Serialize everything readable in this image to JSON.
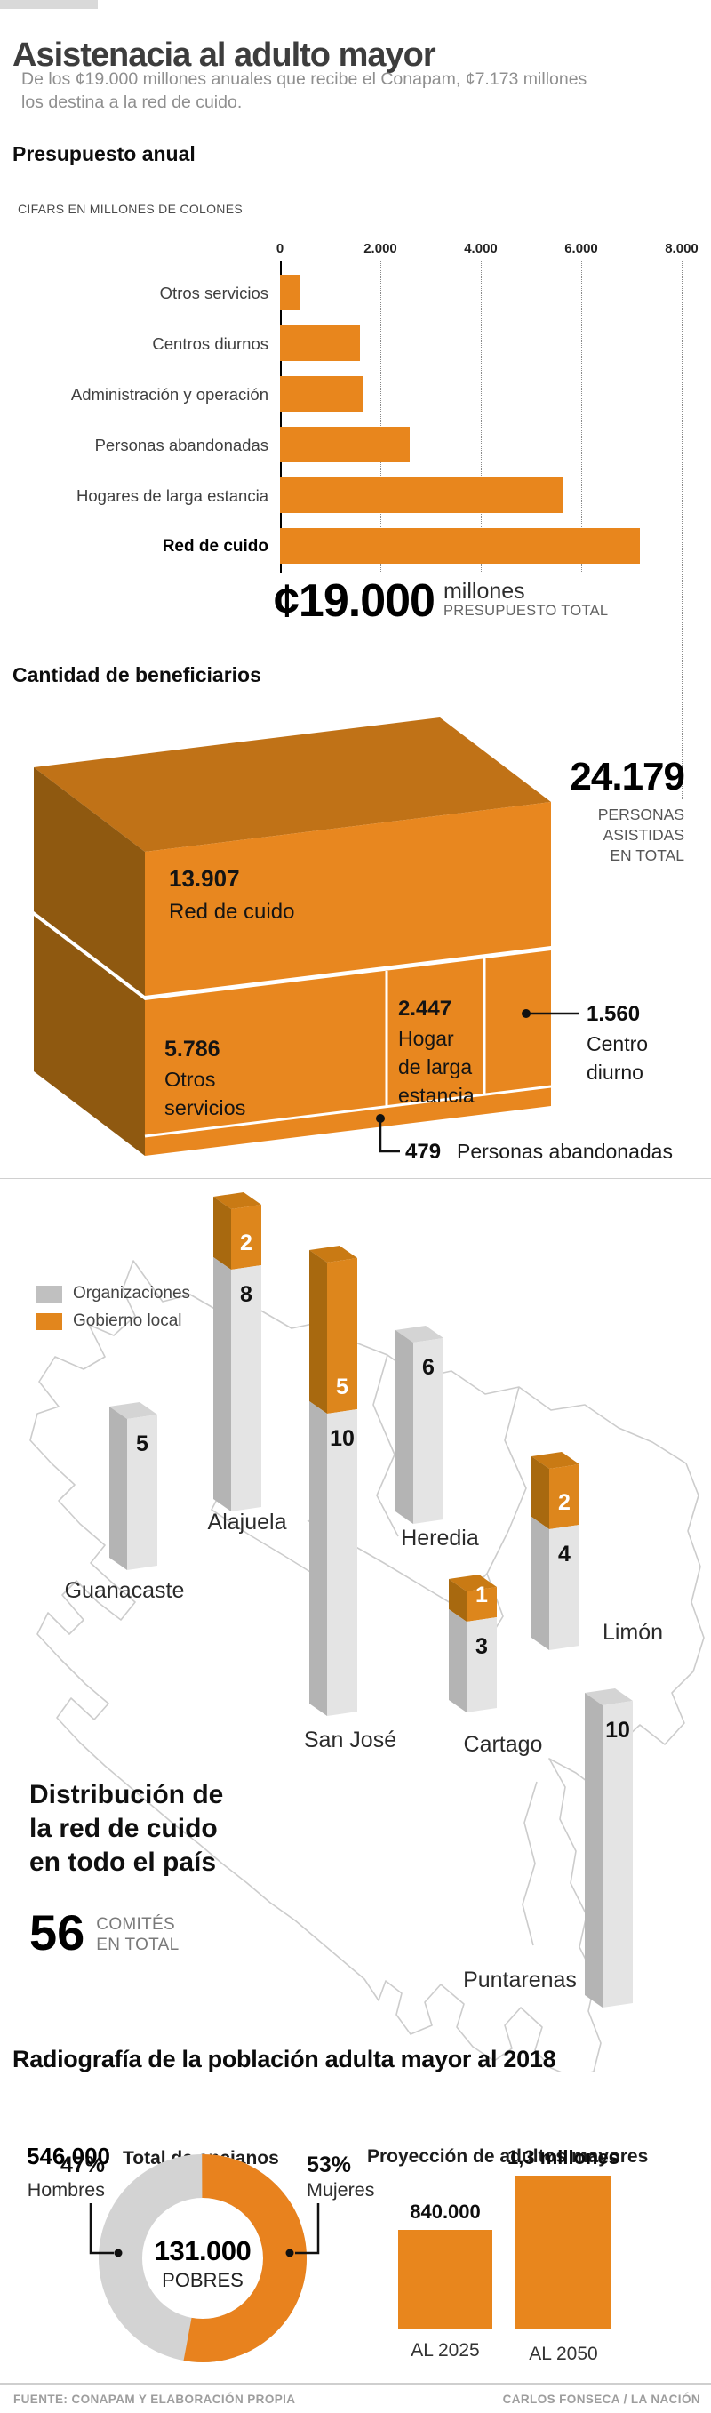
{
  "header": {
    "title": "Asistenacia al adulto mayor",
    "subtitle": "De los ¢19.000 millones anuales que recibe el Conapam, ¢7.173 millones los destina a la red de cuido."
  },
  "budget": {
    "heading": "Presupuesto anual",
    "note": "CIFARS EN MILLONES DE COLONES",
    "ticks": [
      "0",
      "2.000",
      "4.000",
      "6.000",
      "8.000"
    ],
    "total": {
      "value": "¢19.000",
      "unit": "millones",
      "caption": "PRESUPUESTO TOTAL"
    }
  },
  "beneficiaries": {
    "heading": "Cantidad de beneficiarios",
    "total": {
      "value": "24.179",
      "caption_lines": [
        "PERSONAS",
        "ASISTIDAS",
        "EN TOTAL"
      ]
    },
    "red": {
      "value": "13.907",
      "label": "Red de cuido"
    },
    "otros": {
      "value": "5.786",
      "label_lines": [
        "Otros",
        "servicios"
      ]
    },
    "hogar": {
      "value": "2.447",
      "label_lines": [
        "Hogar",
        "de larga",
        "estancia"
      ]
    },
    "centro": {
      "value": "1.560",
      "label_lines": [
        "Centro",
        "diurno"
      ]
    },
    "abandonadas": {
      "value": "479",
      "label": "Personas abandonadas"
    }
  },
  "distribution": {
    "legend": [
      {
        "label": "Organizaciones",
        "color": "#C0C0C0"
      },
      {
        "label": "Gobierno local",
        "color": "#E2861D"
      }
    ],
    "heading_lines": [
      "Distribución de",
      "la red de cuido",
      "en todo el país"
    ],
    "total_value": "56",
    "total_caption_lines": [
      "COMITÉS",
      "EN TOTAL"
    ]
  },
  "radiografia": {
    "heading": "Radiografía de la población adulta mayor al 2018",
    "ancianos": {
      "value": "546.000",
      "label": "Total de ancianos"
    },
    "donut": {
      "center_value": "131.000",
      "center_label": "POBRES",
      "left": {
        "pct": "47%",
        "label": "Hombres"
      },
      "right": {
        "pct": "53%",
        "label": "Mujeres"
      }
    },
    "proyeccion": {
      "heading": "Proyección de adultos mayores",
      "bars": [
        {
          "value_label": "840.000",
          "axis_label": "AL 2025"
        },
        {
          "value_label": "1,3 millones",
          "axis_label": "AL 2050"
        }
      ]
    }
  },
  "footer": {
    "source": "FUENTE: CONAPAM Y ELABORACIÓN PROPIA",
    "credit": "CARLOS FONSECA / LA NACIÓN"
  },
  "colors": {
    "orange": "#E8861D",
    "orange_front": "#E8871F",
    "orange_top": "#C07217",
    "orange_side": "#8F5910",
    "map_orange_front": "#DD861C",
    "map_orange_side": "#A8690F",
    "map_orange_top": "#C97A14",
    "map_gray_front": "#E4E4E4",
    "map_gray_side": "#B4B4B4",
    "map_gray_top": "#D4D4D4",
    "donut_gray": "#D3D3D3",
    "map_outline": "#CCCCCC"
  },
  "chart_data": [
    {
      "type": "bar",
      "orientation": "horizontal",
      "title": "Presupuesto anual",
      "unit": "millones de colones",
      "categories": [
        "Otros servicios",
        "Centros diurnos",
        "Administración y operación",
        "Personas abandonadas",
        "Hogares de larga estancia",
        "Red de cuido"
      ],
      "values": [
        400,
        1590,
        1660,
        2580,
        5620,
        7173
      ],
      "xlim": [
        0,
        8000
      ],
      "xticks": [
        0,
        2000,
        4000,
        6000,
        8000
      ],
      "grid": "dotted-vertical",
      "highlight_category": "Red de cuido",
      "total": 19000
    },
    {
      "type": "table",
      "title": "Cantidad de beneficiarios",
      "columns": [
        "segmento",
        "personas"
      ],
      "rows": [
        [
          "Red de cuido",
          13907
        ],
        [
          "Otros servicios",
          5786
        ],
        [
          "Hogar de larga estancia",
          2447
        ],
        [
          "Centro diurno",
          1560
        ],
        [
          "Personas abandonadas",
          479
        ]
      ],
      "total": 24179
    },
    {
      "type": "bar",
      "title": "Distribución de la red de cuido en todo el país",
      "categories": [
        "Guanacaste",
        "Alajuela",
        "San José",
        "Heredia",
        "Cartago",
        "Limón",
        "Puntarenas"
      ],
      "series": [
        {
          "name": "Organizaciones",
          "values": [
            5,
            8,
            10,
            6,
            3,
            4,
            10
          ]
        },
        {
          "name": "Gobierno local",
          "values": [
            0,
            2,
            5,
            0,
            1,
            2,
            0
          ]
        }
      ],
      "legend_position": "left",
      "total": 56
    },
    {
      "type": "pie",
      "title": "Población adulta mayor al 2018",
      "labels": [
        "Hombres",
        "Mujeres"
      ],
      "values": [
        47,
        53
      ],
      "center_value": 131000,
      "center_label": "POBRES"
    },
    {
      "type": "bar",
      "title": "Proyección de adultos mayores",
      "categories": [
        "AL 2025",
        "AL 2050"
      ],
      "values": [
        840000,
        1300000
      ],
      "value_labels": [
        "840.000",
        "1,3 millones"
      ]
    }
  ]
}
